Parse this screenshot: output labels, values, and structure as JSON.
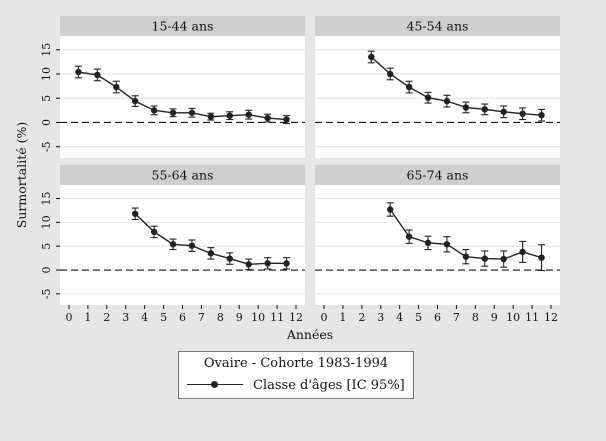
{
  "chart_data": {
    "type": "line",
    "ylabel": "Surmortalité (%)",
    "xlabel": "Années",
    "xlim": [
      0,
      12
    ],
    "ylim": [
      -6.5,
      17
    ],
    "xticks": [
      0,
      1,
      2,
      3,
      4,
      5,
      6,
      7,
      8,
      9,
      10,
      11,
      12
    ],
    "yticks": [
      -5,
      0,
      5,
      10,
      15
    ],
    "reference_line": 0,
    "grid": true,
    "legend": {
      "title": "Ovaire - Cohorte 1983-1994",
      "label": "Classe d'âges [IC 95%]",
      "placement": "bottom-center"
    },
    "panels": [
      {
        "title": "15-44 ans",
        "x": [
          0.5,
          1.5,
          2.5,
          3.5,
          4.5,
          5.5,
          6.5,
          7.5,
          8.5,
          9.5,
          10.5,
          11.5
        ],
        "y": [
          10.4,
          9.8,
          7.3,
          4.4,
          2.5,
          2.0,
          2.0,
          1.2,
          1.4,
          1.6,
          0.9,
          0.6
        ],
        "lo": [
          9.2,
          8.6,
          6.1,
          3.3,
          1.6,
          1.2,
          1.1,
          0.5,
          0.6,
          0.7,
          0.1,
          -0.2
        ],
        "hi": [
          11.6,
          11.0,
          8.5,
          5.5,
          3.4,
          2.8,
          2.9,
          1.9,
          2.2,
          2.5,
          1.7,
          1.4
        ]
      },
      {
        "title": "45-54 ans",
        "x": [
          2.5,
          3.5,
          4.5,
          5.5,
          6.5,
          7.5,
          8.5,
          9.5,
          10.5,
          11.5
        ],
        "y": [
          13.5,
          10.0,
          7.3,
          5.1,
          4.4,
          3.1,
          2.7,
          2.2,
          1.8,
          1.5
        ],
        "lo": [
          12.3,
          8.8,
          6.1,
          4.0,
          3.2,
          2.0,
          1.6,
          1.0,
          0.6,
          0.3
        ],
        "hi": [
          14.7,
          11.2,
          8.5,
          6.2,
          5.6,
          4.2,
          3.8,
          3.4,
          3.0,
          2.7
        ]
      },
      {
        "title": "55-64 ans",
        "x": [
          3.5,
          4.5,
          5.5,
          6.5,
          7.5,
          8.5,
          9.5,
          10.5,
          11.5
        ],
        "y": [
          11.8,
          8.0,
          5.4,
          5.1,
          3.5,
          2.4,
          1.2,
          1.4,
          1.4
        ],
        "lo": [
          10.6,
          6.8,
          4.3,
          3.9,
          2.3,
          1.2,
          0.1,
          0.2,
          0.2
        ],
        "hi": [
          13.0,
          9.2,
          6.5,
          6.3,
          4.7,
          3.6,
          2.3,
          2.6,
          2.6
        ]
      },
      {
        "title": "65-74 ans",
        "x": [
          3.5,
          4.5,
          5.5,
          6.5,
          7.5,
          8.5,
          9.5,
          10.5,
          11.5
        ],
        "y": [
          12.7,
          7.0,
          5.7,
          5.4,
          2.8,
          2.4,
          2.3,
          3.8,
          2.6
        ],
        "lo": [
          11.3,
          5.6,
          4.3,
          3.8,
          1.3,
          0.8,
          0.6,
          1.6,
          -0.1
        ],
        "hi": [
          14.1,
          8.4,
          7.1,
          7.0,
          4.3,
          4.0,
          4.0,
          6.0,
          5.3
        ]
      }
    ]
  }
}
